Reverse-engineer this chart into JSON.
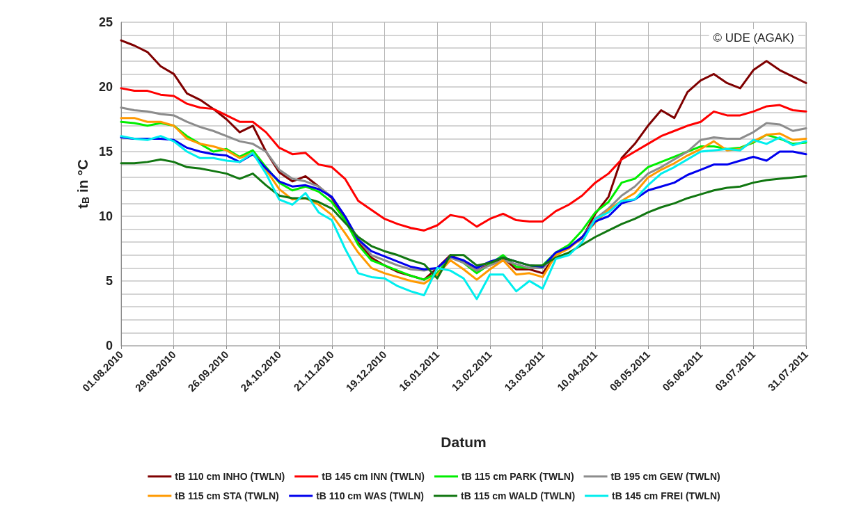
{
  "chart_data": {
    "type": "line",
    "xlabel": "Datum",
    "ylabel": "t$_{B}$ in °C",
    "annotations": [
      "© UDE (AGAK)"
    ],
    "x": [
      "2010-08-01",
      "2010-08-08",
      "2010-08-15",
      "2010-08-22",
      "2010-08-29",
      "2010-09-05",
      "2010-09-12",
      "2010-09-19",
      "2010-09-26",
      "2010-10-03",
      "2010-10-10",
      "2010-10-17",
      "2010-10-24",
      "2010-10-31",
      "2010-11-07",
      "2010-11-14",
      "2010-11-21",
      "2010-11-28",
      "2010-12-05",
      "2010-12-12",
      "2010-12-19",
      "2010-12-26",
      "2011-01-02",
      "2011-01-09",
      "2011-01-16",
      "2011-01-23",
      "2011-01-30",
      "2011-02-06",
      "2011-02-13",
      "2011-02-20",
      "2011-02-27",
      "2011-03-06",
      "2011-03-13",
      "2011-03-20",
      "2011-03-27",
      "2011-04-03",
      "2011-04-10",
      "2011-04-17",
      "2011-04-24",
      "2011-05-01",
      "2011-05-08",
      "2011-05-15",
      "2011-05-22",
      "2011-05-29",
      "2011-06-05",
      "2011-06-12",
      "2011-06-19",
      "2011-06-26",
      "2011-07-03",
      "2011-07-10",
      "2011-07-17",
      "2011-07-24",
      "2011-07-31"
    ],
    "series": [
      {
        "name": "tB 110 cm INHO (TWLN)",
        "color": "#7f0000",
        "values": [
          23.6,
          23.2,
          22.7,
          21.6,
          21.0,
          19.5,
          19.0,
          18.3,
          17.5,
          16.5,
          17.0,
          15.0,
          13.4,
          12.7,
          13.1,
          12.3,
          11.4,
          9.8,
          8.0,
          6.8,
          6.2,
          5.7,
          5.4,
          5.1,
          6.0,
          7.0,
          6.5,
          5.8,
          6.3,
          6.8,
          5.9,
          5.9,
          5.6,
          7.0,
          7.6,
          8.3,
          10.2,
          11.5,
          14.5,
          15.6,
          17.0,
          18.2,
          17.6,
          19.6,
          20.5,
          21.0,
          20.3,
          19.9,
          21.3,
          22.0,
          21.3,
          20.8,
          20.3
        ]
      },
      {
        "name": "tB 145 cm INN (TWLN)",
        "color": "#ff0000",
        "values": [
          19.9,
          19.7,
          19.7,
          19.4,
          19.3,
          18.7,
          18.4,
          18.3,
          17.8,
          17.3,
          17.3,
          16.5,
          15.3,
          14.8,
          14.9,
          14.0,
          13.8,
          12.9,
          11.2,
          10.5,
          9.8,
          9.4,
          9.1,
          8.9,
          9.3,
          10.1,
          9.9,
          9.2,
          9.8,
          10.2,
          9.7,
          9.6,
          9.6,
          10.4,
          10.9,
          11.6,
          12.6,
          13.3,
          14.4,
          15.0,
          15.6,
          16.2,
          16.6,
          17.0,
          17.3,
          18.1,
          17.8,
          17.8,
          18.1,
          18.5,
          18.6,
          18.2,
          18.1
        ]
      },
      {
        "name": "tB 115 cm PARK (TWLN)",
        "color": "#00ee00",
        "values": [
          17.3,
          17.2,
          17.0,
          17.2,
          17.0,
          16.2,
          15.6,
          15.0,
          15.2,
          14.6,
          15.1,
          13.8,
          12.6,
          12.0,
          12.3,
          11.9,
          11.1,
          9.7,
          7.8,
          6.6,
          6.2,
          5.8,
          5.4,
          5.1,
          5.6,
          6.9,
          6.4,
          5.6,
          6.3,
          7.0,
          6.1,
          6.0,
          6.2,
          7.2,
          7.8,
          8.9,
          10.3,
          11.1,
          12.6,
          12.9,
          13.8,
          14.2,
          14.6,
          15.0,
          15.4,
          15.4,
          15.2,
          15.3,
          15.7,
          16.3,
          16.0,
          15.6,
          15.7
        ]
      },
      {
        "name": "tB 195 cm GEW (TWLN)",
        "color": "#8c8c8c",
        "values": [
          18.4,
          18.2,
          18.1,
          17.9,
          17.8,
          17.3,
          16.9,
          16.6,
          16.2,
          15.8,
          15.6,
          15.0,
          13.6,
          12.9,
          12.7,
          12.3,
          11.5,
          10.0,
          8.2,
          7.0,
          6.6,
          6.2,
          5.9,
          5.8,
          6.0,
          6.8,
          6.4,
          5.8,
          6.2,
          6.6,
          6.3,
          6.0,
          6.0,
          7.0,
          7.6,
          8.4,
          9.8,
          10.6,
          11.6,
          12.3,
          13.3,
          13.8,
          14.4,
          15.0,
          15.9,
          16.1,
          16.0,
          16.0,
          16.5,
          17.2,
          17.1,
          16.6,
          16.8
        ]
      },
      {
        "name": "tB 115 cm STA (TWLN)",
        "color": "#ff9900",
        "values": [
          17.6,
          17.6,
          17.3,
          17.3,
          17.0,
          16.0,
          15.6,
          15.4,
          15.1,
          14.5,
          14.9,
          13.6,
          12.1,
          11.3,
          11.4,
          10.9,
          10.1,
          8.7,
          7.2,
          6.0,
          5.6,
          5.3,
          5.0,
          4.8,
          5.5,
          6.6,
          5.9,
          5.1,
          5.9,
          6.6,
          5.5,
          5.6,
          5.3,
          7.0,
          7.5,
          8.4,
          9.5,
          10.5,
          11.2,
          11.8,
          13.0,
          13.6,
          14.1,
          14.7,
          15.2,
          15.8,
          15.1,
          15.2,
          15.8,
          16.3,
          16.4,
          15.9,
          16.0
        ]
      },
      {
        "name": "tB 110 cm WAS (TWLN)",
        "color": "#0000ee",
        "values": [
          16.1,
          16.0,
          16.0,
          16.0,
          15.9,
          15.3,
          15.0,
          14.8,
          14.7,
          14.2,
          14.8,
          13.7,
          12.7,
          12.3,
          12.4,
          12.1,
          11.5,
          10.0,
          8.2,
          7.3,
          6.9,
          6.5,
          6.1,
          5.9,
          6.0,
          6.9,
          6.6,
          6.0,
          6.5,
          6.8,
          6.5,
          6.2,
          6.1,
          7.2,
          7.6,
          8.4,
          9.6,
          10.0,
          11.0,
          11.3,
          12.0,
          12.3,
          12.6,
          13.2,
          13.6,
          14.0,
          14.0,
          14.3,
          14.6,
          14.3,
          15.0,
          15.0,
          14.8
        ]
      },
      {
        "name": "tB 115 cm WALD (TWLN)",
        "color": "#117711",
        "values": [
          14.1,
          14.1,
          14.2,
          14.4,
          14.2,
          13.8,
          13.7,
          13.5,
          13.3,
          12.9,
          13.3,
          12.4,
          11.6,
          11.4,
          11.4,
          11.1,
          10.6,
          9.5,
          8.4,
          7.7,
          7.3,
          7.0,
          6.6,
          6.3,
          5.2,
          7.0,
          7.0,
          6.2,
          6.4,
          6.8,
          6.5,
          6.2,
          6.2,
          6.8,
          7.2,
          7.8,
          8.4,
          8.9,
          9.4,
          9.8,
          10.3,
          10.7,
          11.0,
          11.4,
          11.7,
          12.0,
          12.2,
          12.3,
          12.6,
          12.8,
          12.9,
          13.0,
          13.1
        ]
      },
      {
        "name": "tB 145 cm FREI (TWLN)",
        "color": "#00eeee",
        "values": [
          16.2,
          16.0,
          15.9,
          16.2,
          15.8,
          15.0,
          14.5,
          14.5,
          14.3,
          14.2,
          14.9,
          13.3,
          11.3,
          10.9,
          11.8,
          10.3,
          9.7,
          7.5,
          5.6,
          5.3,
          5.2,
          4.6,
          4.2,
          3.9,
          6.0,
          5.8,
          5.2,
          3.6,
          5.5,
          5.5,
          4.2,
          5.0,
          4.4,
          6.7,
          7.0,
          8.0,
          9.8,
          10.3,
          11.2,
          11.3,
          12.4,
          13.3,
          13.8,
          14.4,
          15.0,
          15.1,
          15.2,
          15.1,
          15.9,
          15.6,
          16.1,
          15.5,
          15.8
        ]
      }
    ],
    "xlim": [
      "2010-08-01",
      "2011-07-31"
    ],
    "xticks": [
      {
        "value": "2010-08-01",
        "label": "01.08.2010"
      },
      {
        "value": "2010-08-29",
        "label": "29.08.2010"
      },
      {
        "value": "2010-09-26",
        "label": "26.09.2010"
      },
      {
        "value": "2010-10-24",
        "label": "24.10.2010"
      },
      {
        "value": "2010-11-21",
        "label": "21.11.2010"
      },
      {
        "value": "2010-12-19",
        "label": "19.12.2010"
      },
      {
        "value": "2011-01-16",
        "label": "16.01.2011"
      },
      {
        "value": "2011-02-13",
        "label": "13.02.2011"
      },
      {
        "value": "2011-03-13",
        "label": "13.03.2011"
      },
      {
        "value": "2011-04-10",
        "label": "10.04.2011"
      },
      {
        "value": "2011-05-08",
        "label": "08.05.2011"
      },
      {
        "value": "2011-06-05",
        "label": "05.06.2011"
      },
      {
        "value": "2011-07-03",
        "label": "03.07.2011"
      },
      {
        "value": "2011-07-31",
        "label": "31.07.2011"
      }
    ],
    "ylim": [
      0,
      25
    ],
    "yticks": [
      0,
      {
        "value": 1,
        "label": null
      },
      {
        "value": 2,
        "label": null
      },
      {
        "value": 3,
        "label": null
      },
      {
        "value": 4,
        "label": null
      },
      5,
      {
        "value": 6,
        "label": null
      },
      {
        "value": 7,
        "label": null
      },
      {
        "value": 8,
        "label": null
      },
      {
        "value": 9,
        "label": null
      },
      10,
      {
        "value": 11,
        "label": null
      },
      {
        "value": 12,
        "label": null
      },
      {
        "value": 13,
        "label": null
      },
      {
        "value": 14,
        "label": null
      },
      15,
      {
        "value": 16,
        "label": null
      },
      {
        "value": 17,
        "label": null
      },
      {
        "value": 18,
        "label": null
      },
      {
        "value": 19,
        "label": null
      },
      20,
      {
        "value": 21,
        "label": null
      },
      {
        "value": 22,
        "label": null
      },
      {
        "value": 23,
        "label": null
      },
      {
        "value": 24,
        "label": null
      },
      25
    ],
    "grid": true,
    "legend": "bottom",
    "marker": "none",
    "line_style": "solid"
  }
}
